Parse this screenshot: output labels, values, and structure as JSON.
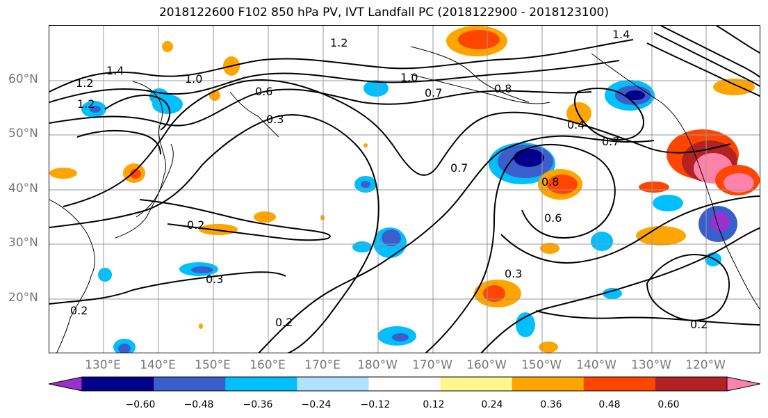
{
  "title": "2018122600 F102 850 hPa PV, IVT Landfall PC (2018122900 - 2018123100)",
  "lat_labels": [
    "60°N",
    "50°N",
    "40°N",
    "30°N",
    "20°N"
  ],
  "lon_labels": [
    "130°E",
    "140°E",
    "150°E",
    "160°E",
    "170°E",
    "180°W",
    "170°W",
    "160°W",
    "150°W",
    "140°W",
    "130°W",
    "120°W"
  ],
  "contour_labels": [
    "1.2",
    "1.4",
    "1.2",
    "1.4",
    "1.0",
    "0.6",
    "0.3",
    "1.0",
    "0.7",
    "0.8",
    "0.4",
    "0.7",
    "0.7",
    "0.8",
    "0.6",
    "0.2",
    "0.3",
    "0.3",
    "0.2",
    "0.2",
    "1.2",
    "0.2"
  ],
  "colorbar": {
    "colors": [
      "#9932cc",
      "#00008b",
      "#3a5fcd",
      "#00bfff",
      "#b0e2ff",
      "#ffffff",
      "#fff68f",
      "#ffa500",
      "#ff4500",
      "#b22222",
      "#ff82ab"
    ],
    "ticks": [
      "−0.60",
      "−0.48",
      "−0.36",
      "−0.24",
      "−0.12",
      "0.12",
      "0.24",
      "0.36",
      "0.48",
      "0.60"
    ]
  },
  "colors": {
    "grid": "#999999",
    "contour": "#000000",
    "tick_text": "#777777"
  }
}
